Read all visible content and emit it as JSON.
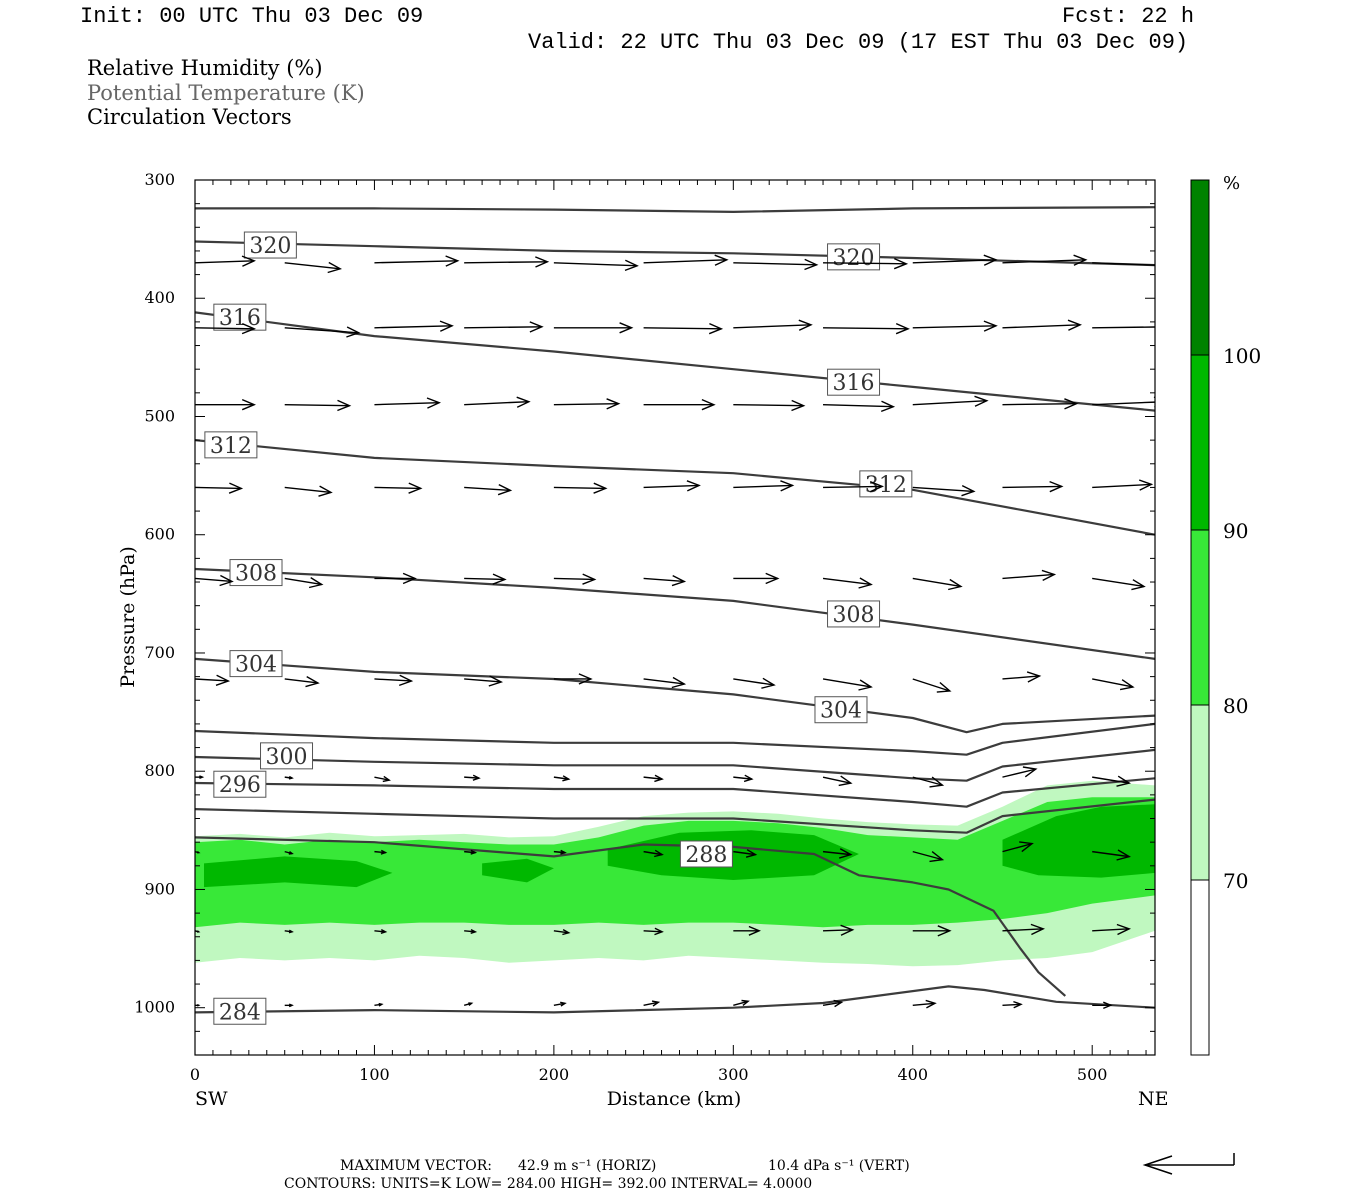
{
  "header": {
    "init": "Init: 00 UTC Thu 03 Dec 09",
    "fcst": "Fcst:   22 h",
    "valid": "Valid: 22 UTC Thu 03 Dec 09 (17 EST Thu 03 Dec 09)"
  },
  "legend": {
    "rh": "Relative Humidity (%)",
    "theta": "Potential Temperature (K)",
    "vectors": "Circulation Vectors"
  },
  "footer": {
    "max_vector_label": "MAXIMUM VECTOR:",
    "max_vector_horiz": "42.9 m s⁻¹ (HORIZ)",
    "max_vector_vert": "10.4 dPa s⁻¹ (VERT)",
    "contours": "CONTOURS:  UNITS=K   LOW=   284.00       HIGH=   392.00       INTERVAL=     4.0000"
  },
  "chart_data": {
    "type": "cross-section",
    "xlabel": "Distance (km)",
    "ylabel": "Pressure (hPa)",
    "xlim": [
      0,
      535
    ],
    "ylim": [
      1040,
      300
    ],
    "x_ticks": [
      "0",
      "100",
      "200",
      "300",
      "400",
      "500"
    ],
    "y_ticks": [
      "300",
      "400",
      "500",
      "600",
      "700",
      "800",
      "900",
      "1000"
    ],
    "x_left_label": "SW",
    "x_right_label": "NE",
    "colorbar": {
      "unit": "%",
      "levels": [
        "70",
        "80",
        "90",
        "100"
      ],
      "colors": [
        "#ffffff",
        "#c0f8c0",
        "#38e838",
        "#00b800",
        "#008200"
      ]
    },
    "rh_fill": {
      "x": [
        0,
        25,
        50,
        75,
        100,
        125,
        150,
        175,
        200,
        225,
        250,
        275,
        300,
        325,
        350,
        375,
        400,
        425,
        450,
        475,
        500,
        535
      ],
      "rh70_top": [
        855,
        853,
        856,
        852,
        855,
        854,
        853,
        856,
        855,
        847,
        838,
        835,
        834,
        836,
        840,
        843,
        845,
        846,
        830,
        812,
        808,
        812
      ],
      "rh70_bottom": [
        962,
        958,
        960,
        958,
        960,
        956,
        958,
        962,
        960,
        958,
        960,
        956,
        958,
        960,
        962,
        963,
        965,
        964,
        960,
        958,
        953,
        935
      ],
      "rh80_top": [
        860,
        858,
        862,
        858,
        860,
        858,
        860,
        862,
        862,
        856,
        846,
        842,
        842,
        844,
        848,
        854,
        856,
        858,
        842,
        826,
        822,
        822
      ],
      "rh80_bottom": [
        932,
        928,
        930,
        928,
        930,
        928,
        928,
        930,
        930,
        928,
        930,
        928,
        928,
        930,
        932,
        930,
        930,
        928,
        925,
        920,
        912,
        905
      ],
      "rh90_patches": [
        {
          "x": [
            5,
            50,
            90,
            110,
            90,
            50,
            5
          ],
          "p": [
            878,
            872,
            876,
            886,
            898,
            894,
            898
          ]
        },
        {
          "x": [
            160,
            185,
            200,
            185,
            160
          ],
          "p": [
            878,
            874,
            882,
            894,
            888
          ]
        },
        {
          "x": [
            230,
            270,
            310,
            345,
            370,
            345,
            300,
            260,
            230
          ],
          "p": [
            866,
            852,
            850,
            854,
            870,
            888,
            892,
            888,
            880
          ]
        },
        {
          "x": [
            450,
            480,
            505,
            535,
            535,
            505,
            470,
            450
          ],
          "p": [
            858,
            838,
            830,
            828,
            886,
            890,
            888,
            880
          ]
        }
      ]
    },
    "theta_contours": [
      {
        "level": 284,
        "x": [
          0,
          100,
          200,
          300,
          350,
          380,
          420,
          440,
          480,
          535
        ],
        "p": [
          1004,
          1002,
          1004,
          1000,
          996,
          990,
          982,
          985,
          995,
          1000
        ]
      },
      {
        "level": 288,
        "x": [
          0,
          100,
          200,
          250,
          300,
          345,
          370,
          400,
          420,
          445,
          460,
          470,
          485
        ],
        "p": [
          856,
          860,
          872,
          862,
          864,
          870,
          888,
          894,
          900,
          918,
          950,
          970,
          990
        ]
      },
      {
        "level": 292,
        "x": [
          0,
          100,
          200,
          300,
          400,
          430,
          450,
          535
        ],
        "p": [
          832,
          836,
          840,
          840,
          850,
          852,
          838,
          824
        ]
      },
      {
        "level": 296,
        "x": [
          0,
          100,
          200,
          300,
          400,
          430,
          450,
          535
        ],
        "p": [
          810,
          812,
          815,
          815,
          826,
          830,
          818,
          806
        ]
      },
      {
        "level": 300,
        "x": [
          0,
          100,
          200,
          300,
          400,
          430,
          450,
          535
        ],
        "p": [
          788,
          792,
          795,
          795,
          806,
          808,
          796,
          782
        ]
      },
      {
        "level": 302,
        "x": [
          0,
          100,
          200,
          300,
          400,
          430,
          450,
          535
        ],
        "p": [
          766,
          772,
          776,
          776,
          783,
          786,
          776,
          760
        ]
      },
      {
        "level": 304,
        "x": [
          0,
          100,
          200,
          300,
          400,
          430,
          450,
          535
        ],
        "p": [
          705,
          716,
          722,
          735,
          755,
          767,
          760,
          753
        ]
      },
      {
        "level": 308,
        "x": [
          0,
          100,
          200,
          300,
          400,
          535
        ],
        "p": [
          629,
          636,
          645,
          656,
          676,
          705
        ]
      },
      {
        "level": 312,
        "x": [
          0,
          100,
          200,
          300,
          400,
          535
        ],
        "p": [
          520,
          535,
          542,
          548,
          562,
          600
        ]
      },
      {
        "level": 316,
        "x": [
          0,
          100,
          200,
          300,
          400,
          535
        ],
        "p": [
          412,
          432,
          445,
          460,
          475,
          495
        ]
      },
      {
        "level": 320,
        "x": [
          0,
          100,
          200,
          300,
          400,
          535
        ],
        "p": [
          352,
          356,
          360,
          362,
          366,
          372
        ]
      },
      {
        "level": 324,
        "x": [
          0,
          100,
          200,
          300,
          400,
          535
        ],
        "p": [
          324,
          324,
          325,
          327,
          324,
          323
        ]
      }
    ],
    "theta_labels": [
      {
        "text": "320",
        "x": 42,
        "p": 355
      },
      {
        "text": "320",
        "x": 367,
        "p": 365
      },
      {
        "text": "316",
        "x": 25,
        "p": 416
      },
      {
        "text": "316",
        "x": 367,
        "p": 471
      },
      {
        "text": "312",
        "x": 20,
        "p": 524
      },
      {
        "text": "312",
        "x": 385,
        "p": 557
      },
      {
        "text": "308",
        "x": 34,
        "p": 632
      },
      {
        "text": "308",
        "x": 367,
        "p": 667
      },
      {
        "text": "304",
        "x": 34,
        "p": 709
      },
      {
        "text": "304",
        "x": 360,
        "p": 748
      },
      {
        "text": "300",
        "x": 51,
        "p": 787
      },
      {
        "text": "296",
        "x": 25,
        "p": 811
      },
      {
        "text": "288",
        "x": 285,
        "p": 870
      },
      {
        "text": "284",
        "x": 25,
        "p": 1003
      }
    ],
    "vectors": {
      "x": [
        0,
        50,
        100,
        150,
        200,
        250,
        300,
        350,
        400,
        450,
        500
      ],
      "rows": [
        {
          "p": 370,
          "dx": [
            32,
            30,
            45,
            45,
            45,
            45,
            45,
            45,
            45,
            45,
            42
          ],
          "dp": [
            -2,
            6,
            -2,
            -1,
            3,
            -3,
            2,
            1,
            -3,
            -3,
            3
          ]
        },
        {
          "p": 425,
          "dx": [
            32,
            40,
            42,
            42,
            42,
            42,
            42,
            46,
            45,
            42,
            42
          ],
          "dp": [
            1,
            5,
            -2,
            -1,
            0,
            1,
            -3,
            1,
            -2,
            -3,
            -1
          ]
        },
        {
          "p": 490,
          "dx": [
            32,
            35,
            35,
            35,
            35,
            38,
            38,
            38,
            40,
            40,
            40
          ],
          "dp": [
            0,
            1,
            -2,
            -3,
            -1,
            0,
            1,
            2,
            -4,
            -1,
            -3
          ]
        },
        {
          "p": 560,
          "dx": [
            25,
            25,
            25,
            25,
            28,
            30,
            32,
            32,
            33,
            32,
            32
          ],
          "dp": [
            1,
            5,
            1,
            3,
            1,
            -2,
            -2,
            -1,
            4,
            -1,
            -3
          ]
        },
        {
          "p": 637,
          "dx": [
            20,
            20,
            22,
            22,
            22,
            22,
            24,
            26,
            26,
            28,
            28
          ],
          "dp": [
            3,
            6,
            0,
            1,
            1,
            3,
            0,
            6,
            8,
            -4,
            8
          ]
        },
        {
          "p": 722,
          "dx": [
            18,
            18,
            20,
            20,
            20,
            22,
            22,
            26,
            20,
            20,
            22
          ],
          "dp": [
            2,
            4,
            2,
            3,
            0,
            5,
            6,
            8,
            12,
            -3,
            8
          ]
        },
        {
          "p": 805,
          "dx": [
            4,
            4,
            8,
            8,
            8,
            10,
            10,
            15,
            16,
            18,
            20
          ],
          "dp": [
            0,
            1,
            3,
            1,
            2,
            2,
            2,
            6,
            8,
            -8,
            6
          ]
        },
        {
          "p": 868,
          "dx": [
            2,
            4,
            6,
            6,
            6,
            10,
            12,
            15,
            16,
            16,
            20
          ],
          "dp": [
            1,
            2,
            1,
            1,
            1,
            3,
            3,
            3,
            8,
            -8,
            5
          ]
        },
        {
          "p": 935,
          "dx": [
            2,
            4,
            6,
            6,
            8,
            10,
            14,
            16,
            20,
            22,
            20
          ],
          "dp": [
            1,
            1,
            1,
            1,
            2,
            1,
            0,
            -1,
            0,
            -2,
            -2
          ]
        },
        {
          "p": 998,
          "dx": [
            2,
            4,
            4,
            4,
            6,
            8,
            8,
            10,
            12,
            10,
            10
          ],
          "dp": [
            0,
            0,
            -1,
            -2,
            -2,
            -3,
            -4,
            -3,
            -2,
            -1,
            0
          ]
        }
      ]
    }
  }
}
